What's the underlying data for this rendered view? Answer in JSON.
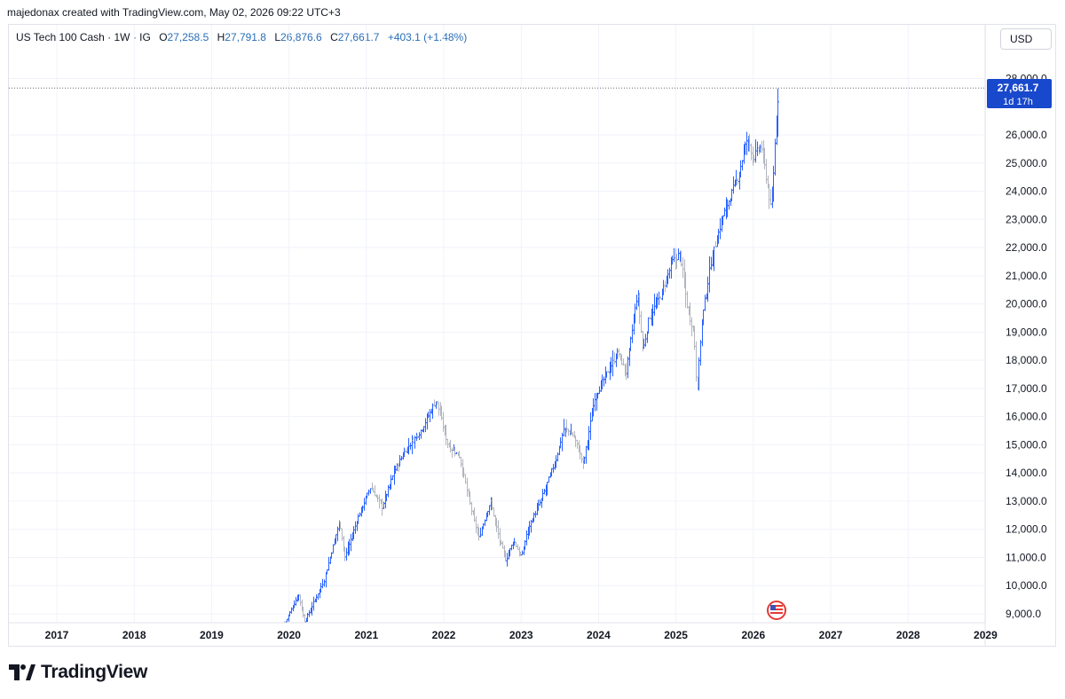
{
  "credit": "majedonax created with TradingView.com, May 02, 2026 09:22 UTC+3",
  "legend": {
    "symbol": "US Tech 100 Cash · 1W · IG",
    "open_label": "O",
    "open": "27,258.5",
    "high_label": "H",
    "high": "27,791.8",
    "low_label": "L",
    "low": "26,876.6",
    "close_label": "C",
    "close": "27,661.7",
    "change": "+403.1 (+1.48%)"
  },
  "currency_button": "USD",
  "price_badge": {
    "price": "27,661.7",
    "countdown": "1d 17h"
  },
  "brand": "TradingView",
  "colors": {
    "up": "#2962ff",
    "down": "#b2b5be",
    "badge": "#1848cc",
    "grid": "#f0f3fa"
  },
  "chart_data": {
    "type": "bar",
    "title": "US Tech 100 Cash",
    "interval": "1W",
    "source": "IG",
    "x_axis_labels": [
      "2017",
      "2018",
      "2019",
      "2020",
      "2021",
      "2022",
      "2023",
      "2024",
      "2025",
      "2026",
      "2027",
      "2028",
      "2029"
    ],
    "y_axis_labels": [
      "9,000.0",
      "10,000.0",
      "11,000.0",
      "12,000.0",
      "13,000.0",
      "14,000.0",
      "15,000.0",
      "16,000.0",
      "17,000.0",
      "18,000.0",
      "19,000.0",
      "20,000.0",
      "21,000.0",
      "22,000.0",
      "23,000.0",
      "24,000.0",
      "25,000.0",
      "26,000.0",
      "28,000.0"
    ],
    "ylim": [
      8700,
      28600
    ],
    "xlim": [
      2016.6,
      2029.2
    ],
    "last_price": 27661.7,
    "grid": true,
    "anchors": [
      [
        2019.95,
        8700
      ],
      [
        2020.12,
        9700
      ],
      [
        2020.2,
        8700
      ],
      [
        2020.45,
        10200
      ],
      [
        2020.65,
        12300
      ],
      [
        2020.72,
        11000
      ],
      [
        2020.9,
        12500
      ],
      [
        2021.05,
        13500
      ],
      [
        2021.2,
        12800
      ],
      [
        2021.35,
        14000
      ],
      [
        2021.5,
        14800
      ],
      [
        2021.7,
        15500
      ],
      [
        2021.9,
        16600
      ],
      [
        2022.05,
        15000
      ],
      [
        2022.2,
        14600
      ],
      [
        2022.35,
        12700
      ],
      [
        2022.45,
        11700
      ],
      [
        2022.6,
        13000
      ],
      [
        2022.72,
        11600
      ],
      [
        2022.8,
        10900
      ],
      [
        2022.9,
        11600
      ],
      [
        2023.0,
        11000
      ],
      [
        2023.08,
        12000
      ],
      [
        2023.25,
        13000
      ],
      [
        2023.45,
        14500
      ],
      [
        2023.55,
        15600
      ],
      [
        2023.68,
        15300
      ],
      [
        2023.8,
        14300
      ],
      [
        2023.95,
        16700
      ],
      [
        2024.1,
        17500
      ],
      [
        2024.25,
        18300
      ],
      [
        2024.35,
        17500
      ],
      [
        2024.5,
        20400
      ],
      [
        2024.57,
        18300
      ],
      [
        2024.65,
        19500
      ],
      [
        2024.8,
        20300
      ],
      [
        2024.95,
        21500
      ],
      [
        2025.05,
        21800
      ],
      [
        2025.15,
        19800
      ],
      [
        2025.23,
        19000
      ],
      [
        2025.27,
        16800
      ],
      [
        2025.33,
        19300
      ],
      [
        2025.45,
        21500
      ],
      [
        2025.6,
        23100
      ],
      [
        2025.8,
        24500
      ],
      [
        2025.92,
        25900
      ],
      [
        2026.0,
        25200
      ],
      [
        2026.1,
        25600
      ],
      [
        2026.18,
        24200
      ],
      [
        2026.23,
        23200
      ],
      [
        2026.26,
        24800
      ],
      [
        2026.3,
        26900
      ],
      [
        2026.33,
        27662
      ]
    ]
  }
}
